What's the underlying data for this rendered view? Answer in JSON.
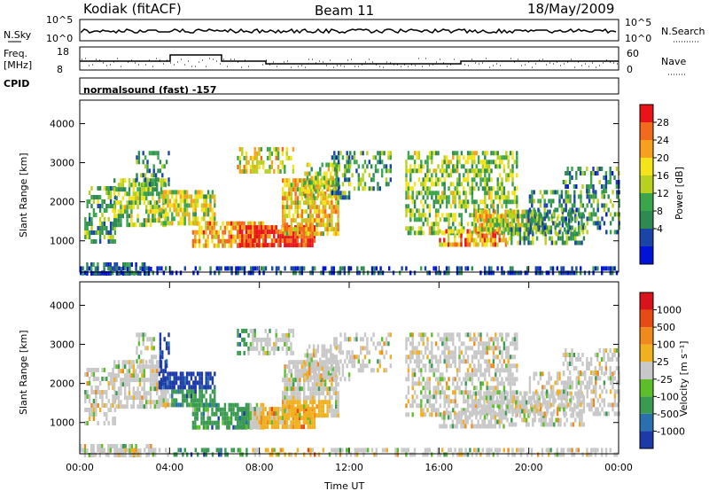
{
  "header": {
    "station": "Kodiak (fitACF)",
    "beam": "Beam 11",
    "date": "18/May/2009"
  },
  "top_panels": {
    "nsky_label": "N.Sky",
    "nsky_ticks": [
      "10^5",
      "10^0"
    ],
    "nsearch_label": "N.Search",
    "nsearch_ticks": [
      "10^5",
      "10^0"
    ],
    "freq_label": "Freq.",
    "freq_unit": "[MHz]",
    "freq_ticks": [
      "18",
      "8"
    ],
    "nave_label": "Nave",
    "nave_ticks": [
      "60",
      "0"
    ],
    "cpid_label": "CPID",
    "cpid_value": "normalsound (fast) -157"
  },
  "chart_data": [
    {
      "type": "heatmap",
      "name": "power",
      "ylabel": "Slant Range [km]",
      "yticks": [
        1000,
        2000,
        3000,
        4000
      ],
      "ylim": [
        200,
        4600
      ],
      "colorbar_label": "Power [dB]",
      "colorbar_ticks": [
        "28",
        "24",
        "20",
        "16",
        "12",
        "8",
        "4"
      ],
      "colors": [
        "#0014d8",
        "#1a44a8",
        "#2f8a52",
        "#3aa54a",
        "#b8d020",
        "#f4e21a",
        "#f7a01e",
        "#f26a1c",
        "#e8141a"
      ]
    },
    {
      "type": "heatmap",
      "name": "velocity",
      "ylabel": "Slant Range [km]",
      "yticks": [
        1000,
        2000,
        3000,
        4000
      ],
      "ylim": [
        200,
        4600
      ],
      "colorbar_label": "Velocity [m s⁻¹]",
      "colorbar_ticks": [
        "1000",
        "500",
        "100",
        "25",
        "-25",
        "-100",
        "-500",
        "-1000"
      ],
      "colors": [
        "#1c3aa8",
        "#2a6fb0",
        "#3a9a52",
        "#5cbf2a",
        "#c8c8c8",
        "#f0b020",
        "#f08a1c",
        "#e84a16",
        "#d8141a"
      ],
      "xlabel": "Time UT",
      "xticks": [
        "00:00",
        "04:00",
        "08:00",
        "12:00",
        "16:00",
        "20:00",
        "00:00"
      ],
      "xlim": [
        0,
        24
      ]
    }
  ]
}
